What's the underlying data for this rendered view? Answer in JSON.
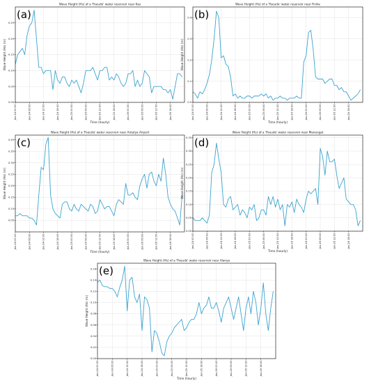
{
  "figure": {
    "colors": {
      "line": "#3aa3cf"
    }
  },
  "chart_data": [
    {
      "type": "line",
      "label": "(a)",
      "title": "Wave Height (Hs) of a 'Pseudo' water reservoir near Kas",
      "xlabel": "Time (hourly)",
      "ylabel": "Wave Height (Hs) (m)",
      "ylim": [
        0,
        0.3
      ],
      "yticks": [
        "0.00",
        "0.05",
        "0.10",
        "0.15",
        "0.20",
        "0.25"
      ],
      "ytick_values": [
        0,
        0.05,
        0.1,
        0.15,
        0.2,
        0.25
      ],
      "xticks": [
        "Jan-24 00:00",
        "Jan-24 06:00",
        "Jan-24 12:00",
        "Jan-24 18:00",
        "Jan-25 00:00",
        "Jan-25 06:00",
        "Jan-25 12:00",
        "Jan-25 18:00",
        "Jan-26 00:00",
        "Jan-26 06:00",
        "Jan-26 12:00",
        "Jan-26 18:00"
      ],
      "x": [
        0,
        1,
        2,
        3,
        4,
        5,
        6,
        7,
        8,
        9,
        10,
        11,
        12,
        13,
        14,
        15,
        16,
        17,
        18,
        19,
        20,
        21,
        22,
        23,
        24,
        25,
        26,
        27,
        28,
        29,
        30,
        31,
        32,
        33,
        34,
        35,
        36,
        37,
        38,
        39,
        40,
        41,
        42,
        43,
        44,
        45,
        46,
        47,
        48,
        49,
        50,
        51,
        52,
        53,
        54,
        55,
        56,
        57,
        58,
        59,
        60,
        61,
        62,
        63,
        64,
        65,
        66,
        67,
        68,
        69,
        70,
        71
      ],
      "xmax": 72,
      "values": [
        0.12,
        0.15,
        0.16,
        0.17,
        0.15,
        0.21,
        0.24,
        0.25,
        0.29,
        0.2,
        0.11,
        0.11,
        0.09,
        0.1,
        0.1,
        0.1,
        0.04,
        0.1,
        0.07,
        0.06,
        0.08,
        0.08,
        0.06,
        0.05,
        0.07,
        0.06,
        0.07,
        0.05,
        0.03,
        0.06,
        0.1,
        0.1,
        0.1,
        0.11,
        0.09,
        0.07,
        0.1,
        0.1,
        0.11,
        0.11,
        0.07,
        0.08,
        0.07,
        0.09,
        0.08,
        0.06,
        0.05,
        0.06,
        0.09,
        0.09,
        0.1,
        0.05,
        0.07,
        0.05,
        0.06,
        0.1,
        0.09,
        0.08,
        0.03,
        0.05,
        0.05,
        0.05,
        0.05,
        0.04,
        0.04,
        0.03,
        0.04,
        0.01,
        0.05,
        0.09,
        0.09,
        0.08
      ]
    },
    {
      "type": "line",
      "label": "(b)",
      "title": "Wave Height (Hs) of a 'Pseudo' water reservoir near Finike",
      "xlabel": "Time (hourly)",
      "ylabel": "Wave Height (Hs) (m)",
      "ylim": [
        0,
        0.45
      ],
      "yticks": [
        "0.0",
        "0.1",
        "0.2",
        "0.3",
        "0.4"
      ],
      "ytick_values": [
        0,
        0.1,
        0.2,
        0.3,
        0.4
      ],
      "xticks": [
        "Jan-24 00:00",
        "Jan-24 06:00",
        "Jan-24 12:00",
        "Jan-24 18:00",
        "Jan-25 00:00",
        "Jan-25 06:00",
        "Jan-25 12:00",
        "Jan-25 18:00",
        "Jan-26 00:00",
        "Jan-26 06:00",
        "Jan-26 12:00",
        "Jan-26 18:00"
      ],
      "x": [
        0,
        1,
        2,
        3,
        4,
        5,
        6,
        7,
        8,
        9,
        10,
        11,
        12,
        13,
        14,
        15,
        16,
        17,
        18,
        19,
        20,
        21,
        22,
        23,
        24,
        25,
        26,
        27,
        28,
        29,
        30,
        31,
        32,
        33,
        34,
        35,
        36,
        37,
        38,
        39,
        40,
        41,
        42,
        43,
        44,
        45,
        46,
        47,
        48,
        49,
        50,
        51,
        52,
        53,
        54,
        55,
        56,
        57,
        58,
        59,
        60,
        61,
        62,
        63,
        64,
        65,
        66,
        67,
        68,
        69,
        70,
        71
      ],
      "xmax": 72,
      "values": [
        0.05,
        0.04,
        0.02,
        0.05,
        0.04,
        0.06,
        0.09,
        0.13,
        0.2,
        0.3,
        0.43,
        0.4,
        0.21,
        0.22,
        0.18,
        0.17,
        0.12,
        0.03,
        0.04,
        0.02,
        0.03,
        0.02,
        0.02,
        0.03,
        0.03,
        0.02,
        0.03,
        0.03,
        0.03,
        0.04,
        0.03,
        0.04,
        0.02,
        0.03,
        0.01,
        0.02,
        0.02,
        0.03,
        0.02,
        0.02,
        0.01,
        0.02,
        0.02,
        0.02,
        0.03,
        0.02,
        0.02,
        0.19,
        0.22,
        0.33,
        0.34,
        0.25,
        0.12,
        0.11,
        0.11,
        0.11,
        0.09,
        0.1,
        0.11,
        0.11,
        0.08,
        0.08,
        0.06,
        0.07,
        0.05,
        0.05,
        0.03,
        0.01,
        0.02,
        0.03,
        0.04,
        0.06
      ]
    },
    {
      "type": "line",
      "label": "(c)",
      "title": "Wave Height (Hs) of a 'Pseudo' water reservoir near Antalya Airport",
      "xlabel": "Time (hourly)",
      "ylabel": "Wave Height (Hs) (m)",
      "ylim": [
        0,
        0.42
      ],
      "yticks": [
        "0.05",
        "0.10",
        "0.15",
        "0.20",
        "0.25",
        "0.30",
        "0.35",
        "0.40"
      ],
      "ytick_values": [
        0.05,
        0.1,
        0.15,
        0.2,
        0.25,
        0.3,
        0.35,
        0.4
      ],
      "xticks": [
        "Jan-24 00:00",
        "Jan-24 06:00",
        "Jan-24 12:00",
        "Jan-24 18:00",
        "Jan-25 00:00",
        "Jan-25 06:00",
        "Jan-25 12:00",
        "Jan-25 18:00",
        "Jan-26 00:00",
        "Jan-26 06:00",
        "Jan-26 12:00",
        "Jan-26 18:00"
      ],
      "x": [
        0,
        1,
        2,
        3,
        4,
        5,
        6,
        7,
        8,
        9,
        10,
        11,
        12,
        13,
        14,
        15,
        16,
        17,
        18,
        19,
        20,
        21,
        22,
        23,
        24,
        25,
        26,
        27,
        28,
        29,
        30,
        31,
        32,
        33,
        34,
        35,
        36,
        37,
        38,
        39,
        40,
        41,
        42,
        43,
        44,
        45,
        46,
        47,
        48,
        49,
        50,
        51,
        52,
        53,
        54,
        55,
        56,
        57,
        58,
        59,
        60,
        61,
        62,
        63,
        64,
        65,
        66,
        67,
        68,
        69,
        70,
        71
      ],
      "xmax": 72,
      "values": [
        0.07,
        0.07,
        0.08,
        0.07,
        0.07,
        0.07,
        0.06,
        0.06,
        0.05,
        0.03,
        0.16,
        0.28,
        0.27,
        0.38,
        0.41,
        0.16,
        0.1,
        0.08,
        0.07,
        0.06,
        0.12,
        0.13,
        0.13,
        0.1,
        0.09,
        0.12,
        0.1,
        0.09,
        0.12,
        0.11,
        0.1,
        0.09,
        0.12,
        0.11,
        0.08,
        0.09,
        0.14,
        0.12,
        0.1,
        0.11,
        0.11,
        0.09,
        0.07,
        0.12,
        0.14,
        0.13,
        0.12,
        0.21,
        0.16,
        0.16,
        0.17,
        0.15,
        0.14,
        0.2,
        0.23,
        0.25,
        0.19,
        0.25,
        0.26,
        0.22,
        0.2,
        0.25,
        0.22,
        0.32,
        0.25,
        0.15,
        0.12,
        0.1,
        0.09,
        0.06,
        0.03,
        0.16
      ]
    },
    {
      "type": "line",
      "label": "(d)",
      "title": "Wave Height (Hs) of a 'Pseudo' water reservoir near Manavgat",
      "xlabel": "Time (hourly)",
      "ylabel": "Wave Height (Hs) (m)",
      "ylim": [
        0,
        0.36
      ],
      "yticks": [
        "0.00",
        "0.05",
        "0.10",
        "0.15",
        "0.20",
        "0.25",
        "0.30",
        "0.35"
      ],
      "ytick_values": [
        0,
        0.05,
        0.1,
        0.15,
        0.2,
        0.25,
        0.3,
        0.35
      ],
      "xticks": [
        "Jan-24 00:00",
        "Jan-24 06:00",
        "Jan-24 12:00",
        "Jan-24 18:00",
        "Jan-25 00:00",
        "Jan-25 06:00",
        "Jan-25 12:00",
        "Jan-25 18:00",
        "Jan-26 00:00",
        "Jan-26 06:00",
        "Jan-26 12:00",
        "Jan-26 18:00"
      ],
      "x": [
        0,
        1,
        2,
        3,
        4,
        5,
        6,
        7,
        8,
        9,
        10,
        11,
        12,
        13,
        14,
        15,
        16,
        17,
        18,
        19,
        20,
        21,
        22,
        23,
        24,
        25,
        26,
        27,
        28,
        29,
        30,
        31,
        32,
        33,
        34,
        35,
        36,
        37,
        38,
        39,
        40,
        41,
        42,
        43,
        44,
        45,
        46,
        47,
        48,
        49,
        50,
        51,
        52,
        53,
        54,
        55,
        56,
        57,
        58,
        59,
        60,
        61,
        62,
        63,
        64,
        65,
        66,
        67,
        68,
        69,
        70,
        71
      ],
      "xmax": 72,
      "values": [
        0.05,
        0.04,
        0.04,
        0.04,
        0.05,
        0.04,
        0.03,
        0.06,
        0.22,
        0.25,
        0.33,
        0.27,
        0.22,
        0.1,
        0.09,
        0.12,
        0.13,
        0.08,
        0.09,
        0.1,
        0.06,
        0.08,
        0.07,
        0.05,
        0.09,
        0.08,
        0.1,
        0.04,
        0.05,
        0.08,
        0.08,
        0.06,
        0.13,
        0.1,
        0.13,
        0.09,
        0.12,
        0.08,
        0.1,
        0.02,
        0.1,
        0.09,
        0.11,
        0.07,
        0.12,
        0.1,
        0.09,
        0.07,
        0.12,
        0.15,
        0.14,
        0.15,
        0.16,
        0.1,
        0.31,
        0.28,
        0.21,
        0.3,
        0.26,
        0.26,
        0.27,
        0.21,
        0.16,
        0.18,
        0.2,
        0.12,
        0.11,
        0.1,
        0.1,
        0.08,
        0.02,
        0.04
      ]
    },
    {
      "type": "line",
      "label": "(e)",
      "title": "Wave Height (Hs) of a 'Pseudo' water reservoir near Alanya",
      "xlabel": "Time (hourly)",
      "ylabel": "Wave Height (Hs) (m)",
      "ylim": [
        0,
        0.17
      ],
      "yticks": [
        "0.00",
        "0.02",
        "0.04",
        "0.06",
        "0.08",
        "0.10",
        "0.12",
        "0.14",
        "0.16"
      ],
      "ytick_values": [
        0,
        0.02,
        0.04,
        0.06,
        0.08,
        0.1,
        0.12,
        0.14,
        0.16
      ],
      "xticks": [
        "Jan-24 00:00",
        "Jan-24 06:00",
        "Jan-24 12:00",
        "Jan-24 18:00",
        "Jan-25 00:00",
        "Jan-25 06:00",
        "Jan-25 12:00",
        "Jan-25 18:00",
        "Jan-26 00:00",
        "Jan-26 06:00",
        "Jan-26 12:00",
        "Jan-26 18:00"
      ],
      "x": [
        0,
        1,
        2,
        3,
        4,
        5,
        6,
        7,
        8,
        9,
        10,
        11,
        12,
        13,
        14,
        15,
        16,
        17,
        18,
        19,
        20,
        21,
        22,
        23,
        24,
        25,
        26,
        27,
        28,
        29,
        30,
        31,
        32,
        33,
        34,
        35,
        36,
        37,
        38,
        39,
        40,
        41,
        42,
        43,
        44,
        45,
        46,
        47,
        48,
        49,
        50,
        51,
        52,
        53,
        54,
        55,
        56,
        57,
        58,
        59,
        60,
        61,
        62,
        63,
        64,
        65,
        66,
        67,
        68,
        69,
        70,
        71
      ],
      "xmax": 72,
      "values": [
        0.136,
        0.14,
        0.13,
        0.128,
        0.128,
        0.125,
        0.125,
        0.12,
        0.11,
        0.127,
        0.14,
        0.165,
        0.085,
        0.14,
        0.145,
        0.11,
        0.1,
        0.115,
        0.05,
        0.11,
        0.105,
        0.09,
        0.012,
        0.05,
        0.045,
        0.03,
        0.01,
        0.005,
        0.03,
        0.04,
        0.045,
        0.055,
        0.06,
        0.065,
        0.07,
        0.05,
        0.055,
        0.065,
        0.07,
        0.07,
        0.08,
        0.1,
        0.08,
        0.09,
        0.095,
        0.11,
        0.09,
        0.09,
        0.1,
        0.085,
        0.065,
        0.09,
        0.1,
        0.11,
        0.09,
        0.07,
        0.09,
        0.11,
        0.08,
        0.05,
        0.09,
        0.11,
        0.08,
        0.12,
        0.1,
        0.06,
        0.09,
        0.135,
        0.08,
        0.05,
        0.09,
        0.12
      ]
    }
  ]
}
